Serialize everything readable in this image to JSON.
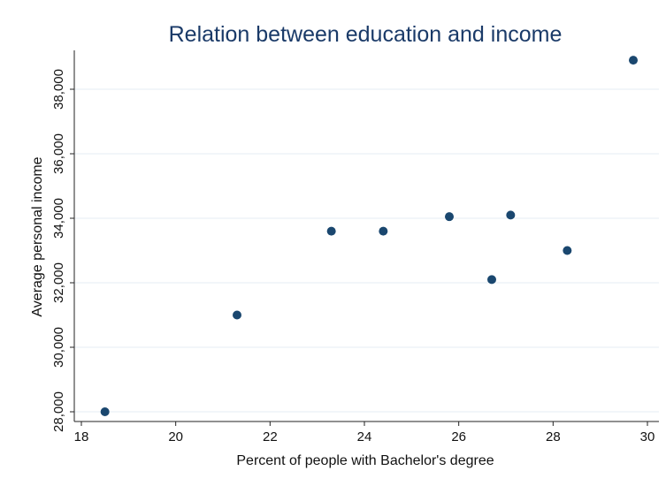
{
  "chart_data": {
    "type": "scatter",
    "title": "Relation between education and income",
    "xlabel": "Percent of people with Bachelor's degree",
    "ylabel": "Average personal income",
    "xlim": [
      18,
      30
    ],
    "ylim": [
      28000,
      39000
    ],
    "x_ticks": [
      18,
      20,
      22,
      24,
      26,
      28,
      30
    ],
    "x_tick_labels": [
      "18",
      "20",
      "22",
      "24",
      "26",
      "28",
      "30"
    ],
    "y_ticks": [
      28000,
      30000,
      32000,
      34000,
      36000,
      38000
    ],
    "y_tick_labels": [
      "28,000",
      "30,000",
      "32,000",
      "34,000",
      "36,000",
      "38,000"
    ],
    "grid": "horizontal",
    "marker_color": "#1a476f",
    "title_color": "#1a3a68",
    "points": [
      {
        "x": 18.5,
        "y": 28000
      },
      {
        "x": 21.3,
        "y": 31000
      },
      {
        "x": 23.3,
        "y": 33600
      },
      {
        "x": 24.4,
        "y": 33600
      },
      {
        "x": 25.8,
        "y": 34050
      },
      {
        "x": 26.7,
        "y": 32100
      },
      {
        "x": 27.1,
        "y": 34100
      },
      {
        "x": 28.3,
        "y": 33000
      },
      {
        "x": 29.7,
        "y": 38900
      }
    ]
  }
}
